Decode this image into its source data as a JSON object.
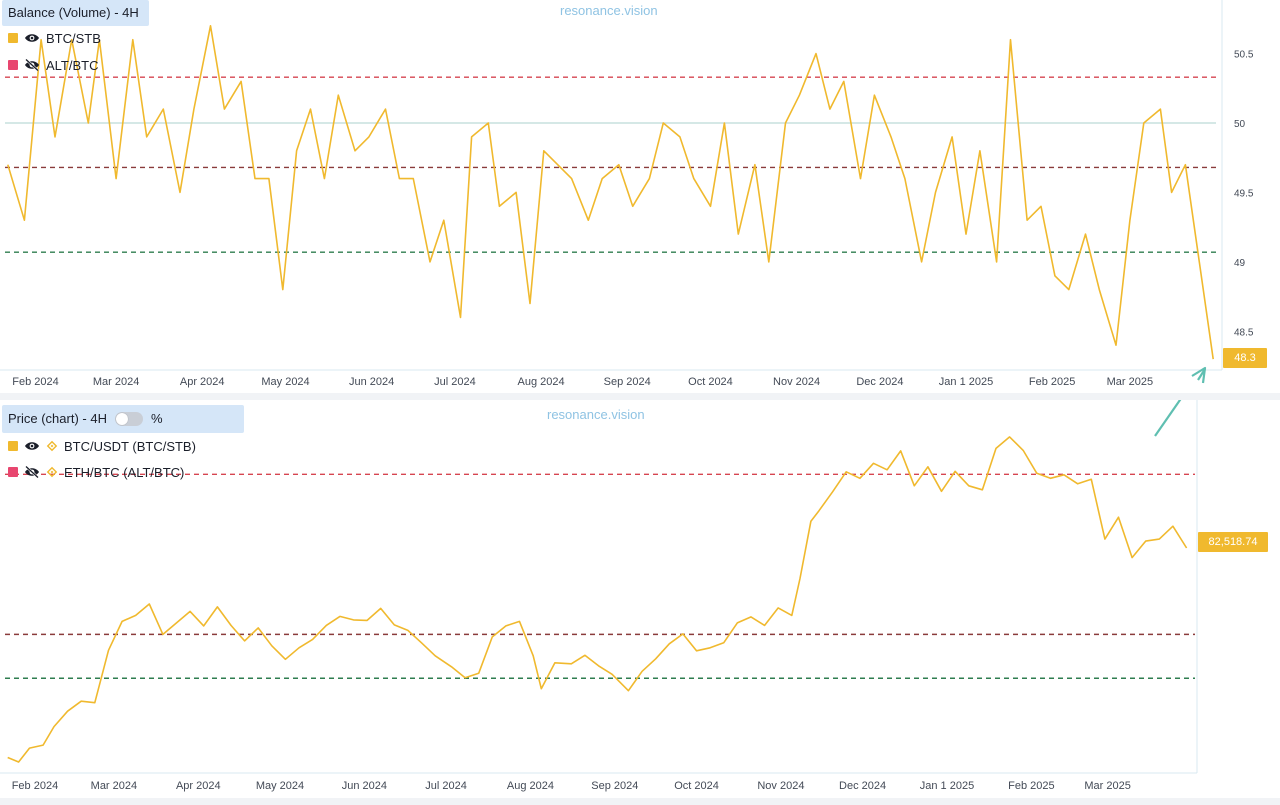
{
  "top_panel": {
    "title": "Balance (Volume) - 4H",
    "watermark": "resonance.vision",
    "legend": [
      {
        "label": "BTC/STB",
        "color": "#f0b92e",
        "icon": "eye-icon"
      },
      {
        "label": "ALT/BTC",
        "color": "#e8466f",
        "icon": "eye-off-icon"
      }
    ],
    "current_value": "48.3"
  },
  "bottom_panel": {
    "title": "Price (chart) - 4H",
    "toggle_label": "%",
    "watermark": "resonance.vision",
    "legend": [
      {
        "label": "BTC/USDT (BTC/STB)",
        "color": "#f0b92e",
        "icon": "eye-icon",
        "coin_icon": "binance-icon"
      },
      {
        "label": "ETH/BTC (ALT/BTC)",
        "color": "#e8466f",
        "icon": "eye-off-icon",
        "coin_icon": "binance-icon"
      }
    ],
    "current_value": "82,518.74"
  },
  "colors": {
    "series": "#f0b92e",
    "red_line": "#d64550",
    "brown_line": "#8a3b3b",
    "green_line": "#2e7d4f",
    "mid_line": "#bcd9d6",
    "arrow": "#5fbfb1"
  },
  "chart_data": [
    {
      "type": "line",
      "title": "Balance (Volume) - 4H",
      "series": [
        {
          "name": "BTC/STB",
          "color": "#f0b92e"
        }
      ],
      "x": [
        "2024-01-22",
        "2024-01-28",
        "2024-02-03",
        "2024-02-08",
        "2024-02-14",
        "2024-02-20",
        "2024-02-24",
        "2024-03-01",
        "2024-03-07",
        "2024-03-12",
        "2024-03-18",
        "2024-03-24",
        "2024-03-29",
        "2024-04-04",
        "2024-04-09",
        "2024-04-15",
        "2024-04-20",
        "2024-04-25",
        "2024-04-30",
        "2024-05-05",
        "2024-05-10",
        "2024-05-15",
        "2024-05-20",
        "2024-05-26",
        "2024-05-31",
        "2024-06-06",
        "2024-06-11",
        "2024-06-16",
        "2024-06-22",
        "2024-06-27",
        "2024-07-03",
        "2024-07-07",
        "2024-07-13",
        "2024-07-17",
        "2024-07-23",
        "2024-07-28",
        "2024-08-02",
        "2024-08-07",
        "2024-08-12",
        "2024-08-18",
        "2024-08-23",
        "2024-08-29",
        "2024-09-03",
        "2024-09-09",
        "2024-09-14",
        "2024-09-20",
        "2024-09-25",
        "2024-10-01",
        "2024-10-06",
        "2024-10-11",
        "2024-10-17",
        "2024-10-22",
        "2024-10-28",
        "2024-11-02",
        "2024-11-08",
        "2024-11-13",
        "2024-11-18",
        "2024-11-24",
        "2024-11-29",
        "2024-12-05",
        "2024-12-10",
        "2024-12-16",
        "2024-12-21",
        "2024-12-27",
        "2025-01-01",
        "2025-01-06",
        "2025-01-12",
        "2025-01-17",
        "2025-01-23",
        "2025-01-28",
        "2025-02-02",
        "2025-02-07",
        "2025-02-13",
        "2025-02-18",
        "2025-02-24",
        "2025-03-01",
        "2025-03-06",
        "2025-03-12",
        "2025-03-16",
        "2025-03-21",
        "2025-03-26",
        "2025-03-31"
      ],
      "values": [
        49.7,
        49.3,
        50.6,
        49.9,
        50.6,
        50.0,
        50.6,
        49.6,
        50.6,
        49.9,
        50.1,
        49.5,
        50.1,
        50.7,
        50.1,
        50.3,
        49.6,
        49.6,
        48.8,
        49.8,
        50.1,
        49.6,
        50.2,
        49.8,
        49.9,
        50.1,
        49.6,
        49.6,
        49.0,
        49.3,
        48.6,
        49.9,
        50.0,
        49.4,
        49.5,
        48.7,
        49.8,
        49.7,
        49.6,
        49.3,
        49.6,
        49.7,
        49.4,
        49.6,
        50.0,
        49.9,
        49.6,
        49.4,
        50.0,
        49.2,
        49.7,
        49.0,
        50.0,
        50.2,
        50.5,
        50.1,
        50.3,
        49.6,
        50.2,
        49.9,
        49.6,
        49.0,
        49.5,
        49.9,
        49.2,
        49.8,
        49.0,
        50.6,
        49.3,
        49.4,
        48.9,
        48.8,
        49.2,
        48.8,
        48.4,
        49.3,
        50.0,
        50.1,
        49.5,
        49.7,
        49.0,
        48.3
      ],
      "yticks": [
        48.5,
        49,
        49.5,
        50,
        50.5
      ],
      "ylim": [
        48.25,
        50.85
      ],
      "xticks": [
        "Feb 2024",
        "Mar 2024",
        "Apr 2024",
        "May 2024",
        "Jun 2024",
        "Jul 2024",
        "Aug 2024",
        "Sep 2024",
        "Oct 2024",
        "Nov 2024",
        "Dec 2024",
        "Jan 1 2025",
        "Feb 2025",
        "Mar 2025"
      ],
      "reference_lines": [
        50.33,
        49.68,
        49.07
      ],
      "mid_line": 50.0,
      "grid": false
    },
    {
      "type": "line",
      "title": "Price (chart) - 4H",
      "series": [
        {
          "name": "BTC/USDT (BTC/STB)",
          "color": "#f0b92e"
        }
      ],
      "x": [
        "2024-01-22",
        "2024-01-26",
        "2024-01-30",
        "2024-02-04",
        "2024-02-08",
        "2024-02-13",
        "2024-02-18",
        "2024-02-23",
        "2024-02-28",
        "2024-03-04",
        "2024-03-09",
        "2024-03-14",
        "2024-03-19",
        "2024-03-24",
        "2024-03-29",
        "2024-04-03",
        "2024-04-08",
        "2024-04-13",
        "2024-04-18",
        "2024-04-23",
        "2024-04-28",
        "2024-05-03",
        "2024-05-08",
        "2024-05-13",
        "2024-05-18",
        "2024-05-23",
        "2024-05-28",
        "2024-06-02",
        "2024-06-07",
        "2024-06-12",
        "2024-06-17",
        "2024-06-22",
        "2024-06-27",
        "2024-07-03",
        "2024-07-08",
        "2024-07-13",
        "2024-07-18",
        "2024-07-23",
        "2024-07-28",
        "2024-08-02",
        "2024-08-05",
        "2024-08-10",
        "2024-08-16",
        "2024-08-21",
        "2024-08-26",
        "2024-08-31",
        "2024-09-06",
        "2024-09-11",
        "2024-09-16",
        "2024-09-21",
        "2024-09-26",
        "2024-10-01",
        "2024-10-06",
        "2024-10-11",
        "2024-10-16",
        "2024-10-21",
        "2024-10-26",
        "2024-10-31",
        "2024-11-05",
        "2024-11-08",
        "2024-11-12",
        "2024-11-15",
        "2024-11-20",
        "2024-11-25",
        "2024-11-30",
        "2024-12-05",
        "2024-12-10",
        "2024-12-15",
        "2024-12-20",
        "2024-12-25",
        "2024-12-30",
        "2025-01-04",
        "2025-01-09",
        "2025-01-14",
        "2025-01-19",
        "2025-01-24",
        "2025-01-29",
        "2025-02-03",
        "2025-02-08",
        "2025-02-13",
        "2025-02-18",
        "2025-02-23",
        "2025-02-28",
        "2025-03-05",
        "2025-03-10",
        "2025-03-15",
        "2025-03-20",
        "2025-03-25",
        "2025-03-30"
      ],
      "values": [
        40500,
        39600,
        42400,
        43000,
        46700,
        49800,
        51800,
        51500,
        62000,
        67800,
        69000,
        71300,
        65200,
        67500,
        69800,
        66900,
        70700,
        67000,
        63900,
        66500,
        62900,
        60200,
        62500,
        64200,
        67000,
        68800,
        68100,
        68000,
        70400,
        67100,
        66000,
        63500,
        60900,
        58700,
        56500,
        57400,
        64700,
        66900,
        67800,
        60900,
        54300,
        59500,
        59300,
        61000,
        58900,
        57200,
        53900,
        57800,
        60300,
        63300,
        65300,
        61900,
        62500,
        63500,
        67500,
        68700,
        67000,
        70500,
        69000,
        76400,
        87900,
        90000,
        93800,
        97800,
        96500,
        99500,
        98200,
        102000,
        95000,
        98800,
        93900,
        97900,
        95000,
        94200,
        102500,
        104800,
        102100,
        97500,
        96500,
        97200,
        95400,
        96300,
        84300,
        88700,
        80600,
        83900,
        84300,
        86900,
        82518.74
      ],
      "ylim": [
        38000,
        111000
      ],
      "xticks": [
        "Feb 2024",
        "Mar 2024",
        "Apr 2024",
        "May 2024",
        "Jun 2024",
        "Jul 2024",
        "Aug 2024",
        "Sep 2024",
        "Oct 2024",
        "Nov 2024",
        "Dec 2024",
        "Jan 1 2025",
        "Feb 2025",
        "Mar 2025"
      ],
      "reference_lines": [
        97300,
        65200,
        56400
      ],
      "grid": false
    }
  ]
}
